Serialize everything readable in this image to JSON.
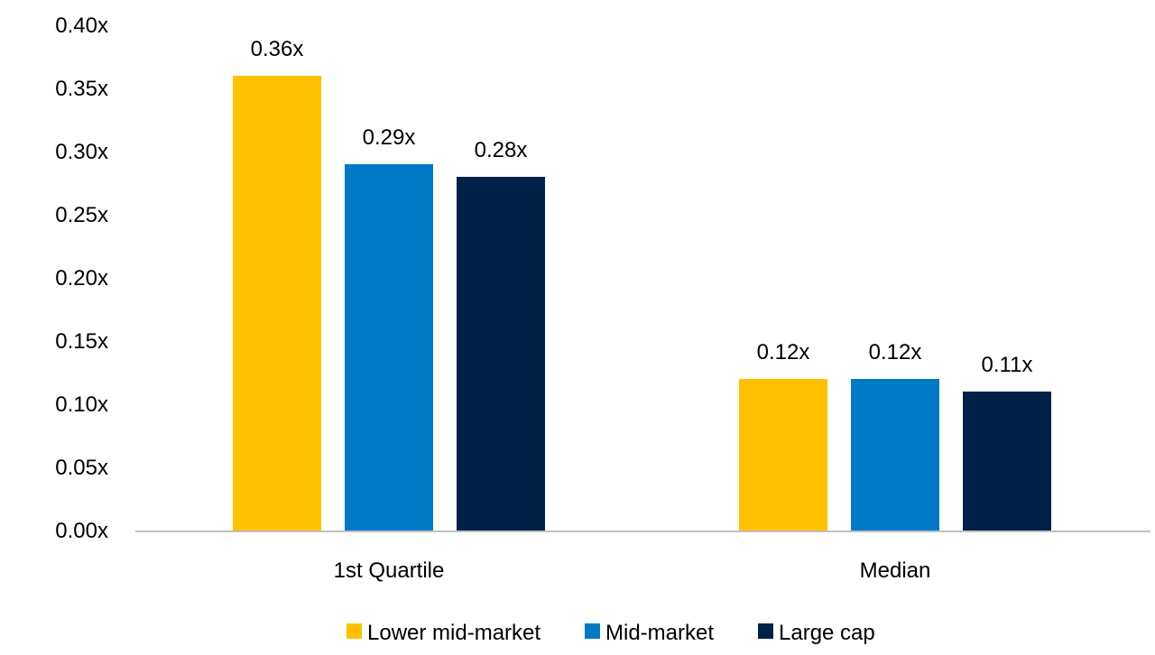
{
  "chart_data": {
    "type": "bar",
    "title": "",
    "xlabel": "",
    "ylabel": "",
    "categories": [
      "1st Quartile",
      "Median"
    ],
    "series": [
      {
        "name": "Lower mid-market",
        "color": "#FFC000",
        "values": [
          0.36,
          0.12
        ],
        "labels": [
          "0.36x",
          "0.12x"
        ]
      },
      {
        "name": "Mid-market",
        "color": "#007AC6",
        "values": [
          0.29,
          0.12
        ],
        "labels": [
          "0.29x",
          "0.12x"
        ]
      },
      {
        "name": "Large cap",
        "color": "#002147",
        "values": [
          0.28,
          0.11
        ],
        "labels": [
          "0.28x",
          "0.11x"
        ]
      }
    ],
    "ylim": [
      0,
      0.4
    ],
    "yticks": [
      "0.00x",
      "0.05x",
      "0.10x",
      "0.15x",
      "0.20x",
      "0.25x",
      "0.30x",
      "0.35x",
      "0.40x"
    ],
    "grid": false,
    "legend": "bottom-center"
  }
}
